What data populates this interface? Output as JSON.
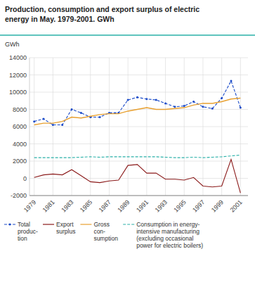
{
  "chart_data": {
    "type": "line",
    "title": "Production, consumption and export surplus of electric\nenergy in May. 1979-2001. GWh",
    "ylabel": "GWh",
    "x": [
      1979,
      1980,
      1981,
      1982,
      1983,
      1984,
      1985,
      1986,
      1987,
      1988,
      1989,
      1990,
      1991,
      1992,
      1993,
      1994,
      1995,
      1996,
      1997,
      1998,
      1999,
      2000,
      2001
    ],
    "series": [
      {
        "name": "Total\nproduc-\ntion",
        "color": "#1a4ac8",
        "line_style": "dashed",
        "marker": "o",
        "values": [
          6600,
          6900,
          6200,
          6200,
          8000,
          7600,
          7100,
          7100,
          7600,
          7600,
          9100,
          9400,
          9200,
          9100,
          8700,
          8300,
          8400,
          8900,
          8300,
          8100,
          9300,
          11300,
          8200
        ]
      },
      {
        "name": "Export\nsurplus",
        "color": "#8b1a1a",
        "line_style": "solid",
        "values": [
          100,
          400,
          500,
          400,
          1000,
          300,
          -400,
          -500,
          -300,
          -200,
          1500,
          1600,
          600,
          600,
          -100,
          -100,
          -200,
          100,
          -900,
          -1000,
          -900,
          2200,
          -1700
        ]
      },
      {
        "name": "Gross\ncon-\nsumption",
        "color": "#e8a030",
        "line_style": "solid",
        "values": [
          6200,
          6400,
          6400,
          6600,
          7100,
          7000,
          7200,
          7400,
          7500,
          7500,
          7800,
          8000,
          8200,
          8000,
          8000,
          8100,
          8200,
          8500,
          8700,
          8700,
          8900,
          9200,
          9300
        ]
      },
      {
        "name": "Consumption in energy-\nintensive manufacturing\n(excluding occasional\npower for electric boilers)",
        "color": "#2ab0a8",
        "line_style": "dashed",
        "values": [
          2400,
          2400,
          2400,
          2400,
          2400,
          2450,
          2500,
          2450,
          2500,
          2500,
          2500,
          2500,
          2500,
          2500,
          2450,
          2400,
          2400,
          2450,
          2400,
          2450,
          2500,
          2600,
          2700
        ]
      }
    ],
    "xlim": [
      1978.5,
      2001.8
    ],
    "xticks": [
      1979,
      1981,
      1983,
      1985,
      1987,
      1989,
      1991,
      1993,
      1995,
      1997,
      1999,
      2001
    ],
    "ylim": [
      -2000,
      14000
    ],
    "yticks": [
      -2000,
      0,
      2000,
      4000,
      6000,
      8000,
      10000,
      12000,
      14000
    ],
    "grid": true,
    "legend": "bottom"
  }
}
